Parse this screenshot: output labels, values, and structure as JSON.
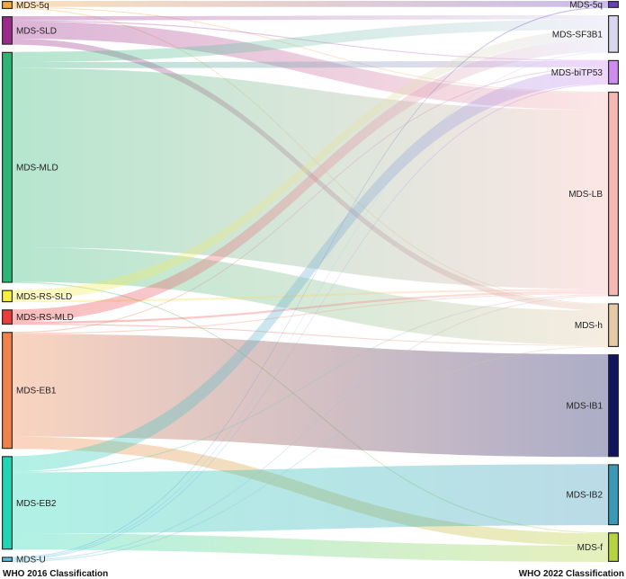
{
  "chart_data": {
    "type": "sankey",
    "source_axis_label": "WHO 2016 Classification",
    "target_axis_label": "WHO 2022 Classification",
    "sources": [
      {
        "id": "s_5q",
        "label": "MDS-5q",
        "color": "#f4a93c"
      },
      {
        "id": "s_sld",
        "label": "MDS-SLD",
        "color": "#9b2a8c"
      },
      {
        "id": "s_mld",
        "label": "MDS-MLD",
        "color": "#2bb673"
      },
      {
        "id": "s_rssld",
        "label": "MDS-RS-SLD",
        "color": "#f7ef3c"
      },
      {
        "id": "s_rsmld",
        "label": "MDS-RS-MLD",
        "color": "#ee3b3b"
      },
      {
        "id": "s_eb1",
        "label": "MDS-EB1",
        "color": "#f0824a"
      },
      {
        "id": "s_eb2",
        "label": "MDS-EB2",
        "color": "#1fd6b4"
      },
      {
        "id": "s_u",
        "label": "MDS-U",
        "color": "#5bc0eb"
      }
    ],
    "targets": [
      {
        "id": "t_5q",
        "label": "MDS-5q",
        "color": "#6a3fc1"
      },
      {
        "id": "t_sf3b1",
        "label": "MDS-SF3B1",
        "color": "#d9d7ee"
      },
      {
        "id": "t_bitp53",
        "label": "MDS-biTP53",
        "color": "#cf8cf0"
      },
      {
        "id": "t_lb",
        "label": "MDS-LB",
        "color": "#f7b7b3"
      },
      {
        "id": "t_h",
        "label": "MDS-h",
        "color": "#e5c9a8"
      },
      {
        "id": "t_ib1",
        "label": "MDS-IB1",
        "color": "#121460"
      },
      {
        "id": "t_ib2",
        "label": "MDS-IB2",
        "color": "#3a98b8"
      },
      {
        "id": "t_f",
        "label": "MDS-f",
        "color": "#b6d440"
      }
    ],
    "links": [
      {
        "source": "s_5q",
        "target": "t_5q",
        "value": 6
      },
      {
        "source": "s_5q",
        "target": "t_lb",
        "value": 1
      },
      {
        "source": "s_5q",
        "target": "t_h",
        "value": 1
      },
      {
        "source": "s_sld",
        "target": "t_sf3b1",
        "value": 4
      },
      {
        "source": "s_sld",
        "target": "t_bitp53",
        "value": 1
      },
      {
        "source": "s_sld",
        "target": "t_lb",
        "value": 17
      },
      {
        "source": "s_sld",
        "target": "t_h",
        "value": 6
      },
      {
        "source": "s_mld",
        "target": "t_sf3b1",
        "value": 10
      },
      {
        "source": "s_mld",
        "target": "t_bitp53",
        "value": 6
      },
      {
        "source": "s_mld",
        "target": "t_lb",
        "value": 176
      },
      {
        "source": "s_mld",
        "target": "t_h",
        "value": 34
      },
      {
        "source": "s_mld",
        "target": "t_f",
        "value": 1
      },
      {
        "source": "s_rssld",
        "target": "t_sf3b1",
        "value": 10
      },
      {
        "source": "s_rssld",
        "target": "t_lb",
        "value": 2
      },
      {
        "source": "s_rsmld",
        "target": "t_sf3b1",
        "value": 12
      },
      {
        "source": "s_rsmld",
        "target": "t_lb",
        "value": 2
      },
      {
        "source": "s_rsmld",
        "target": "t_h",
        "value": 1
      },
      {
        "source": "s_eb1",
        "target": "t_bitp53",
        "value": 1
      },
      {
        "source": "s_eb1",
        "target": "t_lb",
        "value": 1
      },
      {
        "source": "s_eb1",
        "target": "t_ib1",
        "value": 101
      },
      {
        "source": "s_eb1",
        "target": "t_f",
        "value": 12
      },
      {
        "source": "s_eb2",
        "target": "t_bitp53",
        "value": 15
      },
      {
        "source": "s_eb2",
        "target": "t_lb",
        "value": 1
      },
      {
        "source": "s_eb2",
        "target": "t_ib2",
        "value": 60
      },
      {
        "source": "s_eb2",
        "target": "t_f",
        "value": 16
      },
      {
        "source": "s_u",
        "target": "t_5q",
        "value": 1
      },
      {
        "source": "s_u",
        "target": "t_sf3b1",
        "value": 1
      },
      {
        "source": "s_u",
        "target": "t_bitp53",
        "value": 1
      },
      {
        "source": "s_u",
        "target": "t_lb",
        "value": 1
      },
      {
        "source": "s_u",
        "target": "t_h",
        "value": 1
      }
    ]
  }
}
